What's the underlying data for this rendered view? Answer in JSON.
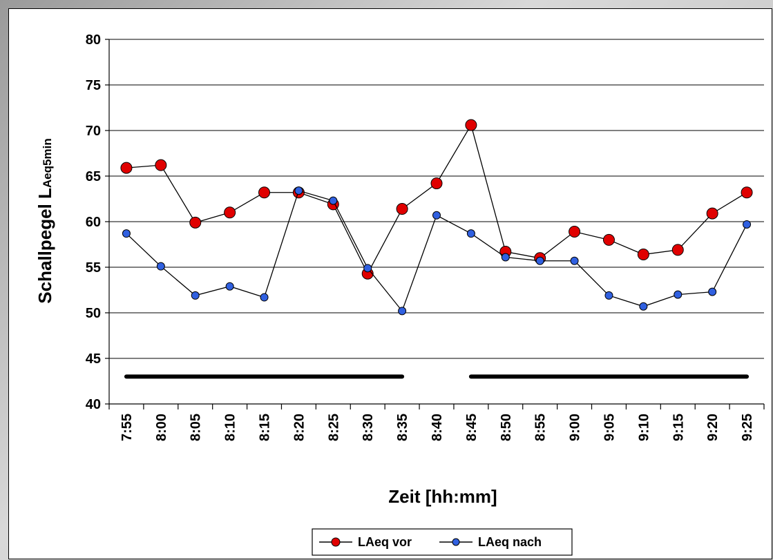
{
  "chart_data": {
    "type": "line",
    "xlabel": "Zeit [hh:mm]",
    "ylabel": "Schallpegel L",
    "ylabel_sub": "Aeq5min",
    "ylim": [
      40,
      80
    ],
    "yticks": [
      40,
      45,
      50,
      55,
      60,
      65,
      70,
      75,
      80
    ],
    "grid": true,
    "legend_position": "bottom",
    "categories": [
      "7:55",
      "8:00",
      "8:05",
      "8:10",
      "8:15",
      "8:20",
      "8:25",
      "8:30",
      "8:35",
      "8:40",
      "8:45",
      "8:50",
      "8:55",
      "9:00",
      "9:05",
      "9:10",
      "9:15",
      "9:20",
      "9:25"
    ],
    "series": [
      {
        "name": "LAeq vor",
        "color": "#e00000",
        "values": [
          65.9,
          66.2,
          59.9,
          61.0,
          63.2,
          63.2,
          61.9,
          54.3,
          61.4,
          64.2,
          70.6,
          56.7,
          56.0,
          58.9,
          58.0,
          56.4,
          56.9,
          60.9,
          63.2
        ]
      },
      {
        "name": "LAeq nach",
        "color": "#3060e0",
        "values": [
          58.7,
          55.1,
          51.9,
          52.9,
          51.7,
          63.4,
          62.3,
          54.9,
          50.2,
          60.7,
          58.7,
          56.1,
          55.7,
          55.7,
          51.9,
          50.7,
          52.0,
          52.3,
          59.7
        ]
      }
    ],
    "annotations": [
      {
        "type": "hline",
        "y": 43,
        "from": "7:55",
        "to": "8:35",
        "color": "#000000"
      },
      {
        "type": "hline",
        "y": 43,
        "from": "8:45",
        "to": "9:25",
        "color": "#000000"
      }
    ]
  }
}
